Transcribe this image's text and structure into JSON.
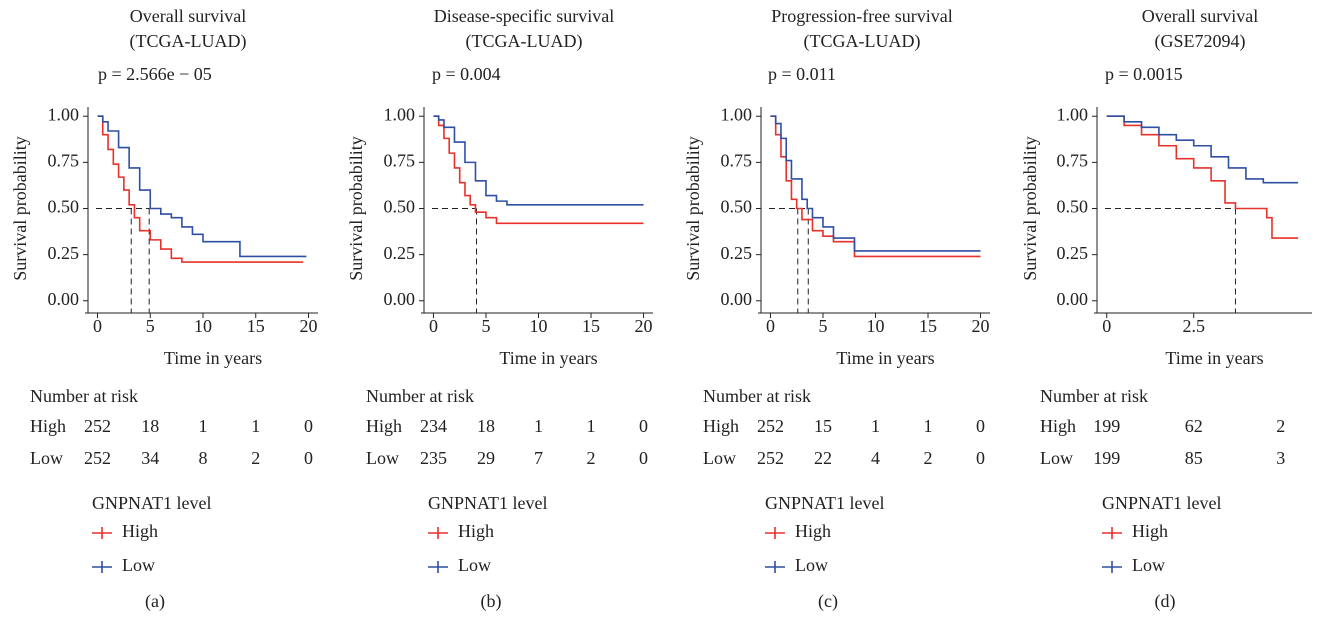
{
  "chart_data": [
    {
      "type": "line",
      "title": "Overall survival",
      "subtitle": "(TCGA-LUAD)",
      "annotation": "p = 2.566e − 05",
      "x_label": "Time in years",
      "y_label": "Survival probability",
      "xlim": [
        -0.9,
        20.9
      ],
      "xticks": [
        0,
        5,
        10,
        15,
        20
      ],
      "ylim": [
        -0.05,
        1.05
      ],
      "yticks": [
        {
          "value": 0,
          "label": "0.00"
        },
        {
          "value": 0.25,
          "label": "0.25"
        },
        {
          "value": 0.5,
          "label": "0.50"
        },
        {
          "value": 0.75,
          "label": "0.75"
        },
        {
          "value": 1,
          "label": "1.00"
        }
      ],
      "series": [
        {
          "name": "High",
          "color": "#e8312a",
          "x": [
            0,
            0.5,
            1,
            1.5,
            2,
            2.5,
            3,
            3.5,
            4,
            5,
            6,
            7,
            8,
            10,
            19.5
          ],
          "values": [
            1,
            0.9,
            0.82,
            0.74,
            0.67,
            0.6,
            0.52,
            0.45,
            0.38,
            0.33,
            0.28,
            0.23,
            0.21,
            0.21,
            0.21
          ]
        },
        {
          "name": "Low",
          "color": "#2e4fa3",
          "x": [
            0,
            0.5,
            1,
            2,
            3,
            4,
            5,
            6,
            7,
            8,
            9,
            10,
            12,
            13.5,
            19.8
          ],
          "values": [
            1,
            0.97,
            0.92,
            0.83,
            0.72,
            0.6,
            0.5,
            0.47,
            0.45,
            0.4,
            0.36,
            0.32,
            0.32,
            0.24,
            0.24
          ]
        }
      ],
      "median_level": 0.5,
      "medians": [
        3.2,
        4.9
      ],
      "risk_table": {
        "title": "Number at risk",
        "times": [
          0,
          5,
          10,
          15,
          20
        ],
        "rows": [
          {
            "name": "High",
            "values": [
              252,
              18,
              1,
              1,
              0
            ]
          },
          {
            "name": "Low",
            "values": [
              252,
              34,
              8,
              2,
              0
            ]
          }
        ]
      },
      "legend_title": "GNPNAT1 level",
      "panel_label": "(a)"
    },
    {
      "type": "line",
      "title": "Disease-specific survival",
      "subtitle": "(TCGA-LUAD)",
      "annotation": "p = 0.004",
      "x_label": "Time in years",
      "y_label": "Survival probability",
      "xlim": [
        -0.9,
        20.9
      ],
      "xticks": [
        0,
        5,
        10,
        15,
        20
      ],
      "ylim": [
        -0.05,
        1.05
      ],
      "yticks": [
        {
          "value": 0,
          "label": "0.00"
        },
        {
          "value": 0.25,
          "label": "0.25"
        },
        {
          "value": 0.5,
          "label": "0.50"
        },
        {
          "value": 0.75,
          "label": "0.75"
        },
        {
          "value": 1,
          "label": "1.00"
        }
      ],
      "series": [
        {
          "name": "High",
          "color": "#e8312a",
          "x": [
            0,
            0.5,
            1,
            1.5,
            2,
            2.5,
            3,
            3.5,
            4,
            5,
            6,
            20
          ],
          "values": [
            1,
            0.95,
            0.88,
            0.8,
            0.72,
            0.64,
            0.57,
            0.52,
            0.48,
            0.45,
            0.42,
            0.42
          ]
        },
        {
          "name": "Low",
          "color": "#2e4fa3",
          "x": [
            0,
            0.5,
            1,
            2,
            3,
            4,
            5,
            6,
            7,
            20
          ],
          "values": [
            1,
            0.98,
            0.94,
            0.86,
            0.75,
            0.65,
            0.57,
            0.54,
            0.52,
            0.52
          ]
        }
      ],
      "median_level": 0.5,
      "medians": [
        4.1
      ],
      "risk_table": {
        "title": "Number at risk",
        "times": [
          0,
          5,
          10,
          15,
          20
        ],
        "rows": [
          {
            "name": "High",
            "values": [
              234,
              18,
              1,
              1,
              0
            ]
          },
          {
            "name": "Low",
            "values": [
              235,
              29,
              7,
              2,
              0
            ]
          }
        ]
      },
      "legend_title": "GNPNAT1 level",
      "panel_label": "(b)"
    },
    {
      "type": "line",
      "title": "Progression-free survival",
      "subtitle": "(TCGA-LUAD)",
      "annotation": "p = 0.011",
      "x_label": "Time in years",
      "y_label": "Survival probability",
      "xlim": [
        -0.9,
        20.9
      ],
      "xticks": [
        0,
        5,
        10,
        15,
        20
      ],
      "ylim": [
        -0.05,
        1.05
      ],
      "yticks": [
        {
          "value": 0,
          "label": "0.00"
        },
        {
          "value": 0.25,
          "label": "0.25"
        },
        {
          "value": 0.5,
          "label": "0.50"
        },
        {
          "value": 0.75,
          "label": "0.75"
        },
        {
          "value": 1,
          "label": "1.00"
        }
      ],
      "series": [
        {
          "name": "High",
          "color": "#e8312a",
          "x": [
            0,
            0.5,
            1,
            1.5,
            2,
            2.5,
            3,
            4,
            5,
            6,
            8,
            20
          ],
          "values": [
            1,
            0.9,
            0.78,
            0.65,
            0.55,
            0.5,
            0.44,
            0.38,
            0.35,
            0.32,
            0.24,
            0.24
          ]
        },
        {
          "name": "Low",
          "color": "#2e4fa3",
          "x": [
            0,
            0.5,
            1,
            1.5,
            2,
            3,
            3.5,
            4,
            5,
            6,
            8,
            20
          ],
          "values": [
            1,
            0.96,
            0.88,
            0.76,
            0.66,
            0.55,
            0.5,
            0.45,
            0.4,
            0.34,
            0.27,
            0.27
          ]
        }
      ],
      "median_level": 0.5,
      "medians": [
        2.6,
        3.6
      ],
      "risk_table": {
        "title": "Number at risk",
        "times": [
          0,
          5,
          10,
          15,
          20
        ],
        "rows": [
          {
            "name": "High",
            "values": [
              252,
              15,
              1,
              1,
              0
            ]
          },
          {
            "name": "Low",
            "values": [
              252,
              22,
              4,
              2,
              0
            ]
          }
        ]
      },
      "legend_title": "GNPNAT1 level",
      "panel_label": "(c)"
    },
    {
      "type": "line",
      "title": "Overall survival",
      "subtitle": "(GSE72094)",
      "annotation": "p = 0.0015",
      "x_label": "Time in years",
      "y_label": "Survival probability",
      "xlim": [
        -0.28,
        5.9
      ],
      "xticks": [
        0,
        2.5
      ],
      "ylim": [
        -0.05,
        1.05
      ],
      "yticks": [
        {
          "value": 0,
          "label": "0.00"
        },
        {
          "value": 0.25,
          "label": "0.25"
        },
        {
          "value": 0.5,
          "label": "0.50"
        },
        {
          "value": 0.75,
          "label": "0.75"
        },
        {
          "value": 1,
          "label": "1.00"
        }
      ],
      "series": [
        {
          "name": "High",
          "color": "#e8312a",
          "x": [
            0,
            0.5,
            1,
            1.5,
            2,
            2.5,
            3,
            3.4,
            3.7,
            4.6,
            4.75,
            5.5
          ],
          "values": [
            1,
            0.95,
            0.9,
            0.84,
            0.77,
            0.72,
            0.65,
            0.53,
            0.5,
            0.45,
            0.34,
            0.34
          ]
        },
        {
          "name": "Low",
          "color": "#2e4fa3",
          "x": [
            0,
            0.5,
            1,
            1.5,
            2,
            2.5,
            3,
            3.5,
            4,
            4.5,
            5.5
          ],
          "values": [
            1,
            0.97,
            0.94,
            0.9,
            0.87,
            0.84,
            0.78,
            0.72,
            0.66,
            0.64,
            0.64
          ]
        }
      ],
      "median_level": 0.5,
      "medians": [
        3.7
      ],
      "risk_table": {
        "title": "Number at risk",
        "times": [
          0,
          2.5,
          5
        ],
        "rows": [
          {
            "name": "High",
            "values": [
              199,
              62,
              2
            ]
          },
          {
            "name": "Low",
            "values": [
              199,
              85,
              3
            ]
          }
        ]
      },
      "legend_title": "GNPNAT1 level",
      "panel_label": "(d)"
    }
  ]
}
